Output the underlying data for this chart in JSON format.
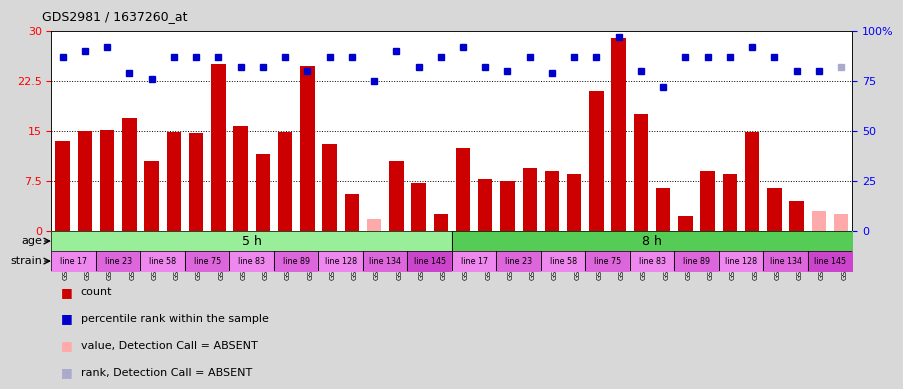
{
  "title": "GDS2981 / 1637260_at",
  "samples": [
    "GSM225283",
    "GSM225286",
    "GSM225288",
    "GSM225289",
    "GSM225291",
    "GSM225293",
    "GSM225296",
    "GSM225298",
    "GSM225299",
    "GSM225302",
    "GSM225304",
    "GSM225306",
    "GSM225307",
    "GSM225309",
    "GSM225317",
    "GSM225318",
    "GSM225319",
    "GSM225320",
    "GSM225322",
    "GSM225323",
    "GSM225324",
    "GSM225325",
    "GSM225326",
    "GSM225327",
    "GSM225328",
    "GSM225329",
    "GSM225330",
    "GSM225331",
    "GSM225332",
    "GSM225333",
    "GSM225334",
    "GSM225335",
    "GSM225336",
    "GSM225337",
    "GSM225338",
    "GSM225339"
  ],
  "counts": [
    13.5,
    15.0,
    15.2,
    17.0,
    10.5,
    14.8,
    14.7,
    25.0,
    15.7,
    11.5,
    14.8,
    24.8,
    13.0,
    5.5,
    1.8,
    10.5,
    7.2,
    2.5,
    12.5,
    7.8,
    7.5,
    9.5,
    9.0,
    8.5,
    21.0,
    29.0,
    17.5,
    6.5,
    2.3,
    9.0,
    8.5,
    14.8,
    6.5,
    4.5,
    3.0,
    2.5
  ],
  "absent_mask": [
    false,
    false,
    false,
    false,
    false,
    false,
    false,
    false,
    false,
    false,
    false,
    false,
    false,
    false,
    true,
    false,
    false,
    false,
    false,
    false,
    false,
    false,
    false,
    false,
    false,
    false,
    false,
    false,
    false,
    false,
    false,
    false,
    false,
    false,
    true,
    true
  ],
  "percentile_ranks": [
    87,
    90,
    92,
    79,
    76,
    87,
    87,
    87,
    82,
    82,
    87,
    80,
    87,
    87,
    75,
    90,
    82,
    87,
    92,
    82,
    80,
    87,
    79,
    87,
    87,
    97,
    80,
    72,
    87,
    87,
    87,
    92,
    87,
    80,
    80,
    82
  ],
  "absent_rank_mask": [
    false,
    false,
    false,
    false,
    false,
    false,
    false,
    false,
    false,
    false,
    false,
    false,
    false,
    false,
    false,
    false,
    false,
    false,
    false,
    false,
    false,
    false,
    false,
    false,
    false,
    false,
    false,
    false,
    false,
    false,
    false,
    false,
    false,
    false,
    false,
    true
  ],
  "bar_color_present": "#cc0000",
  "bar_color_absent": "#ffaaaa",
  "rank_color_present": "#0000cc",
  "rank_color_absent": "#aaaacc",
  "ylim_left": [
    0,
    30
  ],
  "ylim_right": [
    0,
    100
  ],
  "yticks_left": [
    0,
    7.5,
    15,
    22.5,
    30
  ],
  "yticks_right": [
    0,
    25,
    50,
    75,
    100
  ],
  "grid_lines": [
    7.5,
    15,
    22.5
  ],
  "age_groups": [
    {
      "label": "5 h",
      "start": 0,
      "end": 18,
      "color": "#99ee99"
    },
    {
      "label": "8 h",
      "start": 18,
      "end": 36,
      "color": "#55cc55"
    }
  ],
  "strain_groups": [
    {
      "label": "line 17",
      "start": 0,
      "end": 2,
      "color": "#ee88ee"
    },
    {
      "label": "line 23",
      "start": 2,
      "end": 4,
      "color": "#dd66dd"
    },
    {
      "label": "line 58",
      "start": 4,
      "end": 6,
      "color": "#ee88ee"
    },
    {
      "label": "line 75",
      "start": 6,
      "end": 8,
      "color": "#dd66dd"
    },
    {
      "label": "line 83",
      "start": 8,
      "end": 10,
      "color": "#ee88ee"
    },
    {
      "label": "line 89",
      "start": 10,
      "end": 12,
      "color": "#dd66dd"
    },
    {
      "label": "line 128",
      "start": 12,
      "end": 14,
      "color": "#ee88ee"
    },
    {
      "label": "line 134",
      "start": 14,
      "end": 16,
      "color": "#dd66dd"
    },
    {
      "label": "line 145",
      "start": 16,
      "end": 18,
      "color": "#cc44cc"
    },
    {
      "label": "line 17",
      "start": 18,
      "end": 20,
      "color": "#ee88ee"
    },
    {
      "label": "line 23",
      "start": 20,
      "end": 22,
      "color": "#dd66dd"
    },
    {
      "label": "line 58",
      "start": 22,
      "end": 24,
      "color": "#ee88ee"
    },
    {
      "label": "line 75",
      "start": 24,
      "end": 26,
      "color": "#dd66dd"
    },
    {
      "label": "line 83",
      "start": 26,
      "end": 28,
      "color": "#ee88ee"
    },
    {
      "label": "line 89",
      "start": 28,
      "end": 30,
      "color": "#dd66dd"
    },
    {
      "label": "line 128",
      "start": 30,
      "end": 32,
      "color": "#ee88ee"
    },
    {
      "label": "line 134",
      "start": 32,
      "end": 34,
      "color": "#dd66dd"
    },
    {
      "label": "line 145",
      "start": 34,
      "end": 36,
      "color": "#cc44cc"
    }
  ],
  "bg_color": "#d8d8d8",
  "plot_bg": "#ffffff",
  "legend_items": [
    {
      "label": "count",
      "color": "#cc0000",
      "marker": "s"
    },
    {
      "label": "percentile rank within the sample",
      "color": "#0000cc",
      "marker": "s"
    },
    {
      "label": "value, Detection Call = ABSENT",
      "color": "#ffaaaa",
      "marker": "s"
    },
    {
      "label": "rank, Detection Call = ABSENT",
      "color": "#aaaacc",
      "marker": "s"
    }
  ]
}
